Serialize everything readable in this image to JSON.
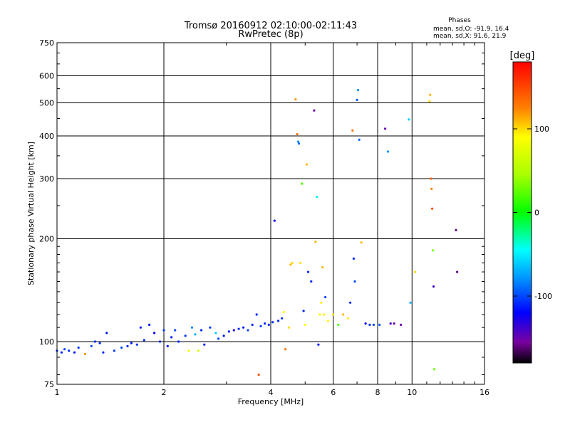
{
  "chart_data": {
    "type": "scatter",
    "title": "Tromsø 20160912 02:10:00-02:11:43",
    "subtitle": "RwPretec (8p)",
    "stats": {
      "heading": "Phases",
      "line_o": "mean, sd,O: -91.9, 16.4",
      "line_x": "mean, sd,X:  91.6, 21.9"
    },
    "xlabel": "Frequency [MHz]",
    "ylabel": "Stationary phase Virtual Height [km]",
    "x_scale": "log",
    "y_scale": "log",
    "xlim": [
      1,
      16
    ],
    "ylim": [
      75,
      750
    ],
    "xticks": [
      1,
      2,
      4,
      6,
      8,
      10,
      16
    ],
    "xtick_labels": [
      "1",
      "2",
      "4",
      "6",
      "8",
      "10",
      "16"
    ],
    "yticks": [
      75,
      100,
      200,
      300,
      400,
      500,
      600,
      750
    ],
    "ytick_labels": [
      "75",
      "100",
      "200",
      "300",
      "400",
      "500",
      "600",
      "750"
    ],
    "grid": true,
    "colorbar": {
      "label": "[deg]",
      "range": [
        -180,
        180
      ],
      "ticks": [
        100,
        0,
        -100
      ],
      "tick_labels": [
        "100",
        "0",
        "-100"
      ],
      "stops": [
        {
          "v": -180,
          "color": "#000000"
        },
        {
          "v": -155,
          "color": "#7a00a0"
        },
        {
          "v": -120,
          "color": "#0000ff"
        },
        {
          "v": -80,
          "color": "#0090ff"
        },
        {
          "v": -45,
          "color": "#00ffff"
        },
        {
          "v": 0,
          "color": "#00ff00"
        },
        {
          "v": 45,
          "color": "#a8ff00"
        },
        {
          "v": 90,
          "color": "#ffff00"
        },
        {
          "v": 125,
          "color": "#ff8000"
        },
        {
          "v": 180,
          "color": "#ff0000"
        }
      ]
    },
    "series": [
      {
        "points": [
          [
            1.0,
            94,
            -105
          ],
          [
            1.03,
            93,
            -110
          ],
          [
            1.05,
            95,
            -100
          ],
          [
            1.08,
            94,
            -108
          ],
          [
            1.12,
            93,
            -112
          ],
          [
            1.15,
            96,
            -105
          ],
          [
            1.2,
            92,
            120
          ],
          [
            1.25,
            97,
            -100
          ],
          [
            1.28,
            100,
            -110
          ],
          [
            1.32,
            99,
            -108
          ],
          [
            1.35,
            93,
            -110
          ],
          [
            1.38,
            106,
            -115
          ],
          [
            1.45,
            94,
            -105
          ],
          [
            1.52,
            96,
            -100
          ],
          [
            1.58,
            97,
            -110
          ],
          [
            1.62,
            99,
            -112
          ],
          [
            1.68,
            98,
            -105
          ],
          [
            1.72,
            110,
            -110
          ],
          [
            1.76,
            101,
            -108
          ],
          [
            1.82,
            112,
            -115
          ],
          [
            1.88,
            106,
            -120
          ],
          [
            1.95,
            100,
            -110
          ],
          [
            2.0,
            108,
            -105
          ],
          [
            2.05,
            97,
            -115
          ],
          [
            2.1,
            103,
            -110
          ],
          [
            2.15,
            108,
            -100
          ],
          [
            2.2,
            100,
            -110
          ],
          [
            2.3,
            104,
            -105
          ],
          [
            2.35,
            94,
            80
          ],
          [
            2.4,
            110,
            -85
          ],
          [
            2.45,
            105,
            -70
          ],
          [
            2.5,
            94,
            70
          ],
          [
            2.55,
            108,
            -110
          ],
          [
            2.6,
            98,
            -112
          ],
          [
            2.7,
            110,
            -105
          ],
          [
            2.8,
            106,
            -60
          ],
          [
            2.85,
            102,
            -100
          ],
          [
            2.95,
            104,
            -115
          ],
          [
            3.05,
            107,
            -110
          ],
          [
            3.15,
            108,
            -130
          ],
          [
            3.25,
            109,
            -108
          ],
          [
            3.35,
            110,
            -112
          ],
          [
            3.45,
            108,
            -100
          ],
          [
            3.55,
            112,
            -110
          ],
          [
            3.65,
            120,
            -110
          ],
          [
            3.7,
            80,
            150
          ],
          [
            3.75,
            111,
            -105
          ],
          [
            3.85,
            113,
            -110
          ],
          [
            3.95,
            112,
            -112
          ],
          [
            4.05,
            114,
            -108
          ],
          [
            4.1,
            226,
            -120
          ],
          [
            4.2,
            115,
            -110
          ],
          [
            4.3,
            117,
            -108
          ],
          [
            4.35,
            122,
            90
          ],
          [
            4.4,
            95,
            130
          ],
          [
            4.5,
            110,
            100
          ],
          [
            4.55,
            168,
            110
          ],
          [
            4.6,
            170,
            100
          ],
          [
            4.7,
            512,
            120
          ],
          [
            4.75,
            405,
            130
          ],
          [
            4.78,
            385,
            -80
          ],
          [
            4.8,
            380,
            -90
          ],
          [
            4.85,
            170,
            100
          ],
          [
            4.9,
            290,
            20
          ],
          [
            4.95,
            123,
            -110
          ],
          [
            5.0,
            112,
            90
          ],
          [
            5.05,
            330,
            110
          ],
          [
            5.1,
            160,
            -110
          ],
          [
            5.2,
            150,
            -110
          ],
          [
            5.3,
            475,
            -150
          ],
          [
            5.35,
            196,
            110
          ],
          [
            5.4,
            265,
            -50
          ],
          [
            5.45,
            98,
            -115
          ],
          [
            5.5,
            120,
            90
          ],
          [
            5.55,
            130,
            95
          ],
          [
            5.6,
            165,
            110
          ],
          [
            5.65,
            120,
            95
          ],
          [
            5.7,
            135,
            -100
          ],
          [
            5.8,
            115,
            90
          ],
          [
            6.0,
            120,
            100
          ],
          [
            6.2,
            112,
            20
          ],
          [
            6.4,
            120,
            110
          ],
          [
            6.6,
            117,
            95
          ],
          [
            6.7,
            130,
            -110
          ],
          [
            6.8,
            415,
            130
          ],
          [
            6.85,
            175,
            -110
          ],
          [
            6.9,
            150,
            -100
          ],
          [
            7.0,
            510,
            -95
          ],
          [
            7.05,
            545,
            -80
          ],
          [
            7.1,
            390,
            -95
          ],
          [
            7.2,
            195,
            110
          ],
          [
            7.4,
            113,
            -115
          ],
          [
            7.6,
            112,
            -110
          ],
          [
            7.8,
            112,
            -100
          ],
          [
            8.1,
            112,
            -95
          ],
          [
            8.4,
            420,
            -150
          ],
          [
            8.55,
            360,
            -80
          ],
          [
            8.7,
            113,
            -140
          ],
          [
            8.9,
            113,
            -150
          ],
          [
            9.3,
            112,
            -150
          ],
          [
            9.8,
            447,
            -60
          ],
          [
            9.9,
            130,
            -70
          ],
          [
            10.2,
            160,
            100
          ],
          [
            11.2,
            505,
            100
          ],
          [
            11.25,
            528,
            110
          ],
          [
            11.3,
            300,
            140
          ],
          [
            11.35,
            280,
            125
          ],
          [
            11.4,
            245,
            145
          ],
          [
            11.45,
            185,
            30
          ],
          [
            11.5,
            145,
            -140
          ],
          [
            11.55,
            83,
            30
          ],
          [
            13.3,
            212,
            -160
          ],
          [
            13.4,
            160,
            -160
          ]
        ]
      }
    ]
  }
}
